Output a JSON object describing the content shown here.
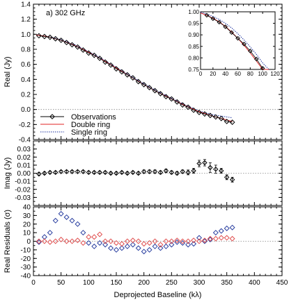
{
  "chart_data": [
    {
      "type": "scatter",
      "panel": "top",
      "annotation": "a) 302 GHz",
      "ylabel": "Real (Jy)",
      "xlim": [
        0,
        450
      ],
      "ylim": [
        -0.4,
        1.4
      ],
      "yticks": [
        "1.4",
        "1.2",
        "1.0",
        "0.8",
        "0.6",
        "0.4",
        "0.2",
        "0.0",
        "-0.2",
        "-0.4"
      ],
      "zero_line": true,
      "legend": {
        "placement": "bottom-left",
        "entries": [
          {
            "label": "Observations",
            "style": "diamond-line",
            "color": "#000000"
          },
          {
            "label": "Double ring",
            "style": "solid",
            "color": "#e02020"
          },
          {
            "label": "Single ring",
            "style": "dotted",
            "color": "#1a2f9e"
          }
        ]
      },
      "series": [
        {
          "name": "Observations",
          "x": [
            10,
            20,
            30,
            40,
            50,
            60,
            70,
            80,
            90,
            100,
            110,
            120,
            130,
            140,
            150,
            160,
            170,
            180,
            190,
            200,
            210,
            220,
            230,
            240,
            250,
            260,
            270,
            280,
            290,
            300,
            310,
            320,
            330,
            340,
            350,
            360
          ],
          "y": [
            0.98,
            0.97,
            0.96,
            0.94,
            0.92,
            0.89,
            0.86,
            0.83,
            0.79,
            0.75,
            0.72,
            0.68,
            0.63,
            0.59,
            0.54,
            0.5,
            0.46,
            0.42,
            0.37,
            0.33,
            0.29,
            0.25,
            0.21,
            0.17,
            0.14,
            0.1,
            0.06,
            0.03,
            -0.01,
            -0.04,
            -0.06,
            -0.08,
            -0.1,
            -0.12,
            -0.16,
            -0.17
          ]
        },
        {
          "name": "Double ring",
          "x": [
            5,
            25,
            50,
            75,
            100,
            125,
            150,
            175,
            200,
            225,
            250,
            275,
            300,
            325,
            350,
            360
          ],
          "y": [
            0.99,
            0.97,
            0.92,
            0.85,
            0.76,
            0.66,
            0.55,
            0.44,
            0.33,
            0.23,
            0.14,
            0.05,
            -0.03,
            -0.09,
            -0.14,
            -0.16
          ]
        },
        {
          "name": "Single ring",
          "x": [
            5,
            25,
            50,
            75,
            100,
            125,
            150,
            175,
            200,
            225,
            250,
            275,
            300,
            325,
            350,
            360
          ],
          "y": [
            0.99,
            0.97,
            0.93,
            0.86,
            0.77,
            0.67,
            0.56,
            0.45,
            0.34,
            0.24,
            0.15,
            0.06,
            -0.02,
            -0.07,
            -0.1,
            -0.11
          ]
        }
      ],
      "inset": {
        "xlim": [
          0,
          120
        ],
        "ylim": [
          0.75,
          1.0
        ],
        "xticks": [
          "0",
          "20",
          "40",
          "60",
          "80",
          "100",
          "120"
        ],
        "yticks": [
          "1.00",
          "0.95",
          "0.90",
          "0.85",
          "0.80",
          "0.75"
        ],
        "series": [
          {
            "name": "Observations",
            "x": [
              10,
              20,
              30,
              40,
              50,
              60,
              70,
              80,
              90,
              100
            ],
            "y": [
              0.985,
              0.97,
              0.955,
              0.935,
              0.91,
              0.885,
              0.86,
              0.83,
              0.795,
              0.755
            ]
          },
          {
            "name": "Double ring",
            "x": [
              0,
              10,
              20,
              30,
              40,
              50,
              60,
              70,
              80,
              90,
              100,
              110
            ],
            "y": [
              0.995,
              0.985,
              0.972,
              0.956,
              0.936,
              0.912,
              0.885,
              0.855,
              0.822,
              0.786,
              0.75,
              0.715
            ]
          },
          {
            "name": "Single ring",
            "x": [
              0,
              10,
              20,
              30,
              40,
              50,
              60,
              70,
              80,
              90,
              100,
              110
            ],
            "y": [
              0.998,
              0.99,
              0.98,
              0.967,
              0.95,
              0.93,
              0.905,
              0.878,
              0.848,
              0.815,
              0.778,
              0.74
            ]
          }
        ]
      }
    },
    {
      "type": "scatter",
      "panel": "middle",
      "ylabel": "Imag (Jy)",
      "xlim": [
        0,
        450
      ],
      "ylim": [
        -0.04,
        0.04
      ],
      "yticks": [
        "0.03",
        "0.02",
        "0.01",
        "0.00",
        "-0.01",
        "-0.02",
        "-0.03"
      ],
      "zero_line": true,
      "series": [
        {
          "name": "Observations",
          "x": [
            10,
            20,
            30,
            40,
            50,
            60,
            70,
            80,
            90,
            100,
            110,
            120,
            130,
            140,
            150,
            160,
            170,
            180,
            190,
            200,
            210,
            220,
            230,
            240,
            250,
            260,
            270,
            280,
            290,
            300,
            310,
            320,
            330,
            340,
            350,
            360
          ],
          "y": [
            -0.001,
            0.0,
            0.001,
            0.001,
            0.002,
            0.002,
            0.002,
            0.002,
            0.002,
            0.001,
            0.001,
            0.001,
            0.001,
            0.0,
            0.0,
            0.001,
            0.0,
            0.001,
            0.0,
            0.002,
            0.002,
            0.002,
            0.001,
            0.003,
            0.001,
            0.0,
            0.002,
            0.001,
            0.003,
            0.012,
            0.013,
            0.007,
            0.005,
            0.003,
            -0.005,
            -0.008
          ],
          "err": [
            0.0015,
            0.0015,
            0.0015,
            0.0015,
            0.0015,
            0.0015,
            0.0015,
            0.0015,
            0.0015,
            0.0015,
            0.0015,
            0.0015,
            0.0015,
            0.0015,
            0.0015,
            0.0015,
            0.0015,
            0.0015,
            0.0015,
            0.002,
            0.002,
            0.002,
            0.002,
            0.002,
            0.002,
            0.002,
            0.002,
            0.003,
            0.003,
            0.004,
            0.004,
            0.006,
            0.005,
            0.003,
            0.003,
            0.003
          ]
        }
      ]
    },
    {
      "type": "scatter",
      "panel": "bottom",
      "ylabel": "Real Residuals (σ)",
      "xlabel": "Deprojected Baseline (kλ)",
      "xlim": [
        0,
        450
      ],
      "ylim": [
        -40,
        40
      ],
      "xticks": [
        "0",
        "50",
        "100",
        "150",
        "200",
        "250",
        "300",
        "350",
        "400",
        "450"
      ],
      "yticks": [
        "40",
        "30",
        "20",
        "10",
        "0",
        "-10",
        "-20",
        "-30",
        "-40"
      ],
      "zero_line": true,
      "series": [
        {
          "name": "Single ring",
          "color": "#2a3fa0",
          "x": [
            10,
            20,
            30,
            40,
            50,
            60,
            70,
            80,
            90,
            100,
            110,
            120,
            130,
            140,
            150,
            160,
            170,
            180,
            190,
            200,
            210,
            220,
            230,
            240,
            250,
            260,
            270,
            280,
            290,
            300,
            310,
            320,
            330,
            340,
            350,
            360
          ],
          "y": [
            -1,
            5,
            10,
            24,
            32,
            28,
            24,
            20,
            10,
            -2,
            -6,
            -2,
            -4,
            -8,
            -10,
            -8,
            -6,
            -4,
            -8,
            -12,
            -10,
            -6,
            -8,
            -6,
            -4,
            -1,
            -2,
            -4,
            -3,
            4,
            0,
            2,
            10,
            12,
            15,
            16
          ]
        },
        {
          "name": "Double ring",
          "color": "#e05050",
          "x": [
            10,
            20,
            30,
            40,
            50,
            60,
            70,
            80,
            90,
            100,
            110,
            120,
            130,
            140,
            150,
            160,
            170,
            180,
            190,
            200,
            210,
            220,
            230,
            240,
            250,
            260,
            270,
            280,
            290,
            300,
            310,
            320,
            330,
            340,
            350,
            360
          ],
          "y": [
            0,
            0,
            -1,
            0,
            2,
            0,
            0,
            1,
            -2,
            5,
            5,
            8,
            0,
            0,
            -2,
            -3,
            0,
            1,
            0,
            -3,
            -2,
            0,
            -4,
            0,
            0,
            1,
            0,
            0,
            1,
            0,
            1,
            3,
            3,
            4,
            4,
            3
          ]
        }
      ]
    }
  ]
}
